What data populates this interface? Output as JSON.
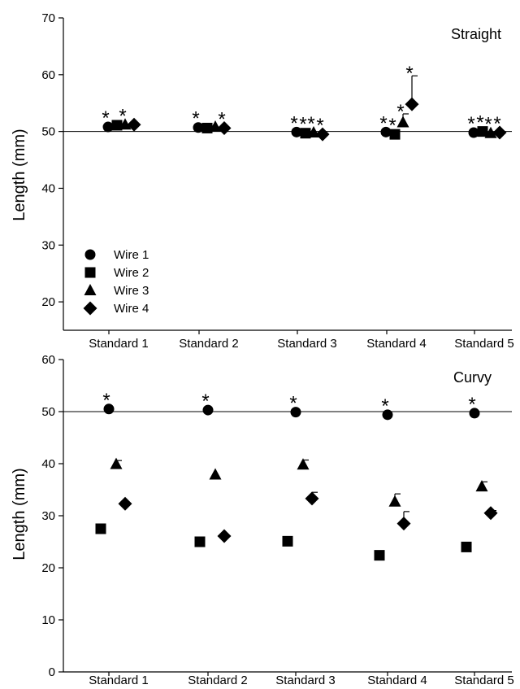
{
  "chart_data": [
    {
      "type": "scatter",
      "title": "Straight",
      "xlabel": "",
      "ylabel": "Length (mm)",
      "ylim": [
        15,
        70
      ],
      "yticks": [
        20,
        30,
        40,
        50,
        60,
        70
      ],
      "categories": [
        "Standard 1",
        "Standard 2",
        "Standard 3",
        "Standard 4",
        "Standard 5"
      ],
      "reference_line": 50,
      "grid": false,
      "legend_position": "bottom-left",
      "series": [
        {
          "name": "Wire 1",
          "marker": "circle",
          "values": [
            50.8,
            50.7,
            49.9,
            49.9,
            49.8
          ],
          "errors": [
            0,
            0,
            0,
            0,
            0
          ],
          "significant": [
            true,
            true,
            true,
            true,
            true
          ]
        },
        {
          "name": "Wire 2",
          "marker": "square",
          "values": [
            51.1,
            50.6,
            49.7,
            49.5,
            50.0
          ],
          "errors": [
            0,
            0,
            0,
            0,
            0
          ],
          "significant": [
            false,
            false,
            true,
            true,
            true
          ]
        },
        {
          "name": "Wire 3",
          "marker": "triangle",
          "values": [
            51.2,
            50.8,
            49.8,
            51.6,
            49.7
          ],
          "errors": [
            0,
            0,
            0,
            1.5,
            0
          ],
          "significant": [
            true,
            false,
            true,
            true,
            true
          ]
        },
        {
          "name": "Wire 4",
          "marker": "diamond",
          "values": [
            51.2,
            50.6,
            49.5,
            54.8,
            49.8
          ],
          "errors": [
            0,
            0,
            0,
            5.0,
            0
          ],
          "significant": [
            false,
            true,
            true,
            true,
            true
          ]
        }
      ],
      "significance_marker": "*"
    },
    {
      "type": "scatter",
      "title": "Curvy",
      "xlabel": "",
      "ylabel": "Length (mm)",
      "ylim": [
        0,
        60
      ],
      "yticks": [
        0,
        10,
        20,
        30,
        40,
        50,
        60
      ],
      "categories": [
        "Standard 1",
        "Standard 2",
        "Standard 3",
        "Standard 4",
        "Standard 5"
      ],
      "reference_line": 50,
      "grid": false,
      "series": [
        {
          "name": "Wire 1",
          "marker": "circle",
          "values": [
            50.5,
            50.3,
            49.9,
            49.4,
            49.7
          ],
          "errors": [
            0,
            0,
            0,
            0,
            0
          ],
          "significant": [
            true,
            true,
            true,
            true,
            true
          ]
        },
        {
          "name": "Wire 2",
          "marker": "square",
          "values": [
            27.5,
            25.0,
            25.1,
            22.4,
            24.0
          ],
          "errors": [
            0,
            0,
            0,
            0,
            0
          ],
          "significant": [
            false,
            false,
            false,
            false,
            false
          ]
        },
        {
          "name": "Wire 3",
          "marker": "triangle",
          "values": [
            39.9,
            37.9,
            39.8,
            32.7,
            35.6
          ],
          "errors": [
            0.7,
            0,
            0.9,
            1.5,
            0.9
          ],
          "significant": [
            false,
            false,
            false,
            false,
            false
          ]
        },
        {
          "name": "Wire 4",
          "marker": "diamond",
          "values": [
            32.3,
            26.1,
            33.3,
            28.5,
            30.5
          ],
          "errors": [
            0,
            0,
            1.2,
            2.3,
            0.5
          ],
          "significant": [
            false,
            false,
            false,
            false,
            false
          ]
        }
      ],
      "significance_marker": "*"
    }
  ]
}
